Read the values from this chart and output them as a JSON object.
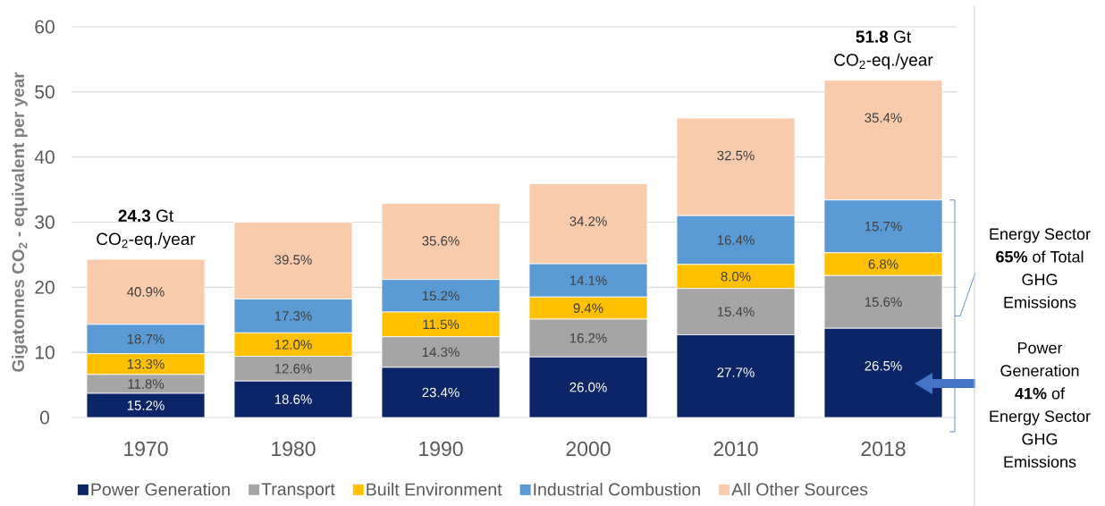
{
  "chart_data": {
    "type": "bar",
    "stacked": true,
    "categories": [
      "1970",
      "1980",
      "1990",
      "2000",
      "2010",
      "2018"
    ],
    "series": [
      {
        "name": "Power Generation",
        "color": "#0b2566",
        "values": [
          3.7,
          5.6,
          7.7,
          9.3,
          12.7,
          13.7
        ]
      },
      {
        "name": "Transport",
        "color": "#a5a5a5",
        "values": [
          2.9,
          3.8,
          4.7,
          5.8,
          7.1,
          8.1
        ]
      },
      {
        "name": "Built Environment",
        "color": "#ffc000",
        "values": [
          3.2,
          3.6,
          3.8,
          3.4,
          3.7,
          3.5
        ]
      },
      {
        "name": "Industrial Combustion",
        "color": "#5b9bd5",
        "values": [
          4.5,
          5.2,
          5.0,
          5.1,
          7.5,
          8.1
        ]
      },
      {
        "name": "All Other Sources",
        "color": "#f8cbad",
        "values": [
          10.0,
          11.8,
          11.7,
          12.3,
          15.0,
          18.4
        ]
      }
    ],
    "totals": [
      "**24.3** Gt CO$_{2}$-eq./year",
      null,
      null,
      null,
      null,
      "**51.8** Gt CO$_{2}$-eq./year"
    ],
    "ylabel": "Gigatonnes CO$_{2}$ - equivalent per year",
    "ylim": [
      0,
      60
    ],
    "yticks": [
      0,
      10,
      20,
      30,
      40,
      50,
      60
    ],
    "grid": "y",
    "legend": "bottom",
    "annotations": [
      "Energy Sector **65%** of Total GHG Emissions",
      "Power Generation **41%** of Energy Sector GHG Emissions",
      {
        "text": "15.2%",
        "x": "1970",
        "y": 3.7
      },
      {
        "text": "11.8%",
        "x": "1970",
        "y": 6.6
      },
      {
        "text": "13.3%",
        "x": "1970",
        "y": 9.8
      },
      {
        "text": "18.7%",
        "x": "1970",
        "y": 14.3
      },
      {
        "text": "40.9%",
        "x": "1970",
        "y": 24.3
      },
      {
        "text": "18.6%",
        "x": "1980",
        "y": 5.6
      },
      {
        "text": "12.6%",
        "x": "1980",
        "y": 9.4
      },
      {
        "text": "12.0%",
        "x": "1980",
        "y": 13.0
      },
      {
        "text": "17.3%",
        "x": "1980",
        "y": 18.2
      },
      {
        "text": "39.5%",
        "x": "1980",
        "y": 30.0
      },
      {
        "text": "23.4%",
        "x": "1990",
        "y": 7.7
      },
      {
        "text": "14.3%",
        "x": "1990",
        "y": 12.4
      },
      {
        "text": "11.5%",
        "x": "1990",
        "y": 16.2
      },
      {
        "text": "15.2%",
        "x": "1990",
        "y": 21.2
      },
      {
        "text": "35.6%",
        "x": "1990",
        "y": 32.9
      },
      {
        "text": "26.0%",
        "x": "2000",
        "y": 9.3
      },
      {
        "text": "16.2%",
        "x": "2000",
        "y": 15.1
      },
      {
        "text": "9.4%",
        "x": "2000",
        "y": 18.5
      },
      {
        "text": "14.1%",
        "x": "2000",
        "y": 23.6
      },
      {
        "text": "34.2%",
        "x": "2000",
        "y": 35.9
      },
      {
        "text": "27.7%",
        "x": "2010",
        "y": 12.7
      },
      {
        "text": "15.4%",
        "x": "2010",
        "y": 19.8
      },
      {
        "text": "8.0%",
        "x": "2010",
        "y": 23.5
      },
      {
        "text": "16.4%",
        "x": "2010",
        "y": 31.0
      },
      {
        "text": "32.5%",
        "x": "2010",
        "y": 46.0
      },
      {
        "text": "26.5%",
        "x": "2018",
        "y": 13.7
      },
      {
        "text": "15.6%",
        "x": "2018",
        "y": 21.8
      },
      {
        "text": "6.8%",
        "x": "2018",
        "y": 25.3
      },
      {
        "text": "15.7%",
        "x": "2018",
        "y": 33.4
      },
      {
        "text": "35.4%",
        "x": "2018",
        "y": 51.8
      }
    ]
  }
}
